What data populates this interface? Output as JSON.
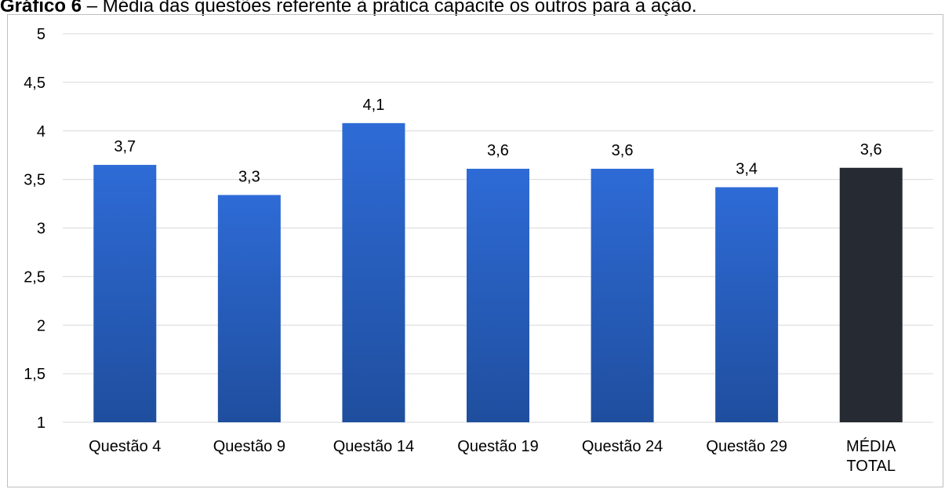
{
  "title": {
    "prefix": "Gráfico 6",
    "text": " – Média das questões referente à prática capacite os outros para a ação."
  },
  "colors": {
    "bar_blue_top": "#2E6BD6",
    "bar_blue_bottom": "#1F4E9E",
    "bar_total": "#252A33",
    "grid": "#d9d9d9"
  },
  "chart_data": {
    "type": "bar",
    "categories": [
      "Questão 4",
      "Questão 9",
      "Questão 14",
      "Questão 19",
      "Questão 24",
      "Questão 29",
      "MÉDIA TOTAL"
    ],
    "values": [
      3.65,
      3.34,
      4.08,
      3.61,
      3.61,
      3.42,
      3.62
    ],
    "data_labels": [
      "3,7",
      "3,3",
      "4,1",
      "3,6",
      "3,6",
      "3,4",
      "3,6"
    ],
    "y_ticks": [
      "1",
      "1,5",
      "2",
      "2,5",
      "3",
      "3,5",
      "4",
      "4,5",
      "5"
    ],
    "ylim": [
      1,
      5
    ],
    "y_step": 0.5,
    "grid": true,
    "legend": "none"
  }
}
